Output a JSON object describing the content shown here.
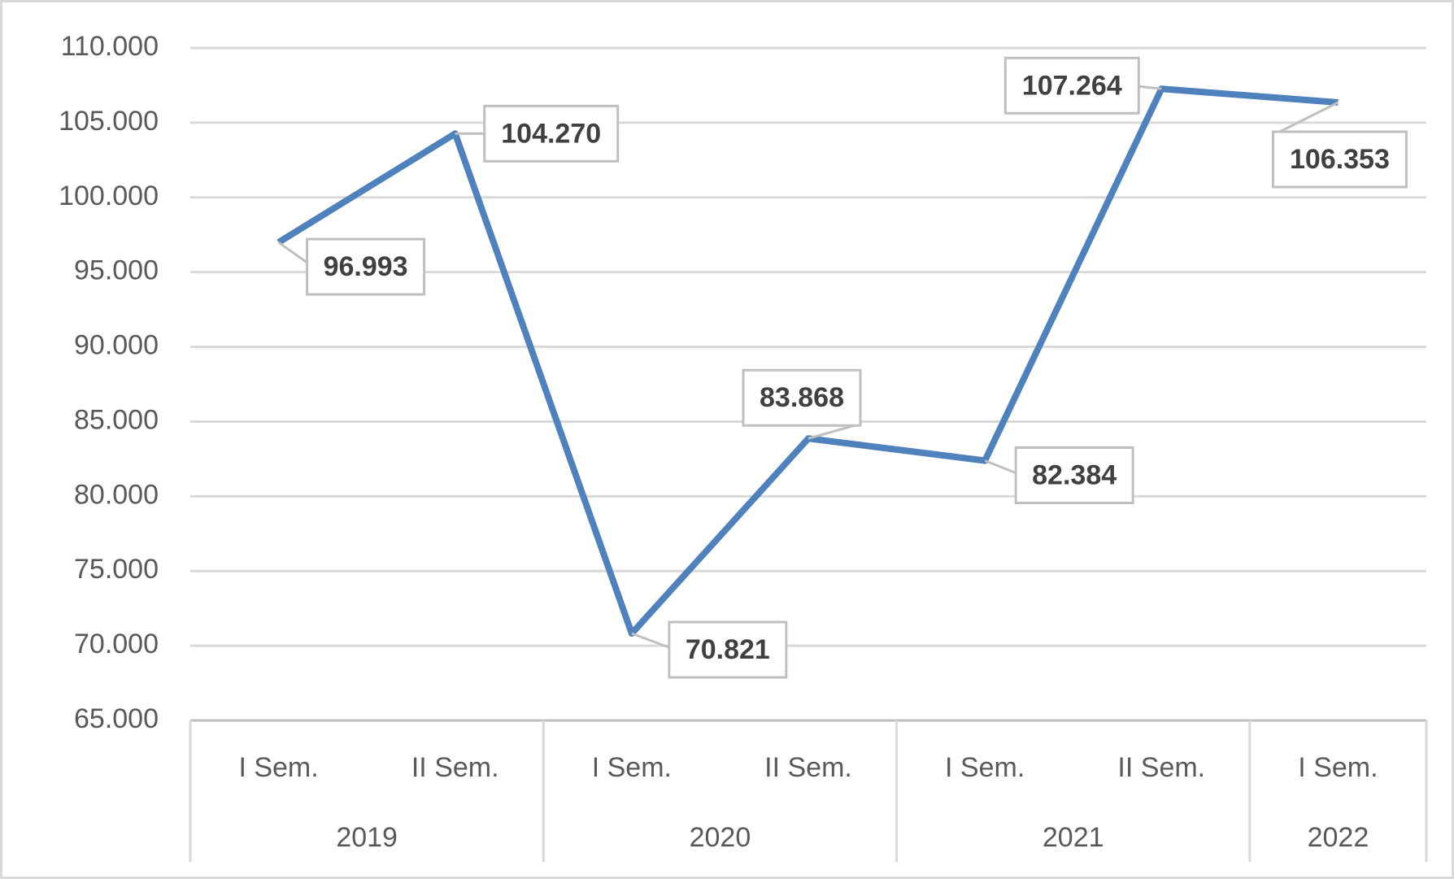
{
  "chart_data": {
    "type": "line",
    "categories": [
      "I Sem.",
      "II Sem.",
      "I Sem.",
      "II Sem.",
      "I Sem.",
      "II Sem.",
      "I Sem."
    ],
    "groups": [
      {
        "label": "2019",
        "span": 2
      },
      {
        "label": "2020",
        "span": 2
      },
      {
        "label": "2021",
        "span": 2
      },
      {
        "label": "2022",
        "span": 1
      }
    ],
    "series": [
      {
        "color": "#4f81bd",
        "values": [
          96993,
          104270,
          70821,
          83868,
          82384,
          107264,
          106353
        ],
        "value_labels": [
          "96.993",
          "104.270",
          "70.821",
          "83.868",
          "82.384",
          "107.264",
          "106.353"
        ]
      }
    ],
    "ylim": [
      65000,
      110000
    ],
    "yticks": [
      {
        "value": 65000,
        "label": "65.000"
      },
      {
        "value": 70000,
        "label": "70.000"
      },
      {
        "value": 75000,
        "label": "75.000"
      },
      {
        "value": 80000,
        "label": "80.000"
      },
      {
        "value": 85000,
        "label": "85.000"
      },
      {
        "value": 90000,
        "label": "90.000"
      },
      {
        "value": 95000,
        "label": "95.000"
      },
      {
        "value": 100000,
        "label": "100.000"
      },
      {
        "value": 105000,
        "label": "105.000"
      },
      {
        "value": 110000,
        "label": "110.000"
      }
    ],
    "grid": true
  }
}
